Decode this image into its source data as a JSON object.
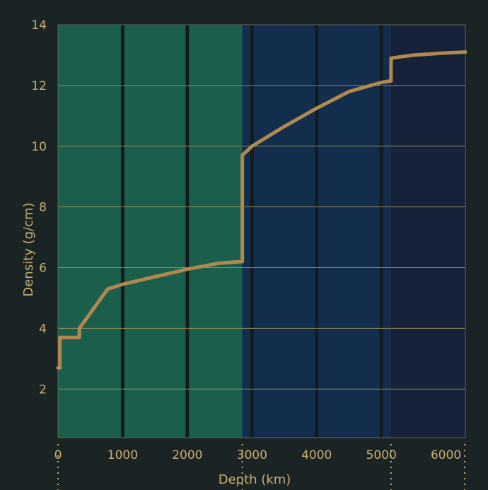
{
  "chart_data": {
    "type": "line",
    "title": "",
    "xlabel": "Depth (km)",
    "ylabel": "Density (g/cm)",
    "xlim": [
      0,
      6300
    ],
    "ylim": [
      0.4,
      14
    ],
    "x_ticks": [
      0,
      1000,
      2000,
      3000,
      4000,
      5000,
      6000
    ],
    "x_tick_labels": [
      "0",
      "1000",
      "2000",
      "3000",
      "4000",
      "5000",
      "6000"
    ],
    "y_ticks": [
      2,
      4,
      6,
      8,
      10,
      12,
      14
    ],
    "y_tick_labels": [
      "2",
      "4",
      "6",
      "8",
      "10",
      "12",
      "14"
    ],
    "grid": "horizontal",
    "regions": [
      {
        "from": 0,
        "to": 2850,
        "color": "#1b5e4c"
      },
      {
        "from": 2850,
        "to": 5150,
        "color": "#132d4d"
      },
      {
        "from": 5150,
        "to": 6300,
        "color": "#16223a"
      }
    ],
    "vertical_lines": [
      1000,
      2000,
      3000,
      4000,
      5000
    ],
    "dotted_markers": [
      0,
      2850,
      5150,
      6300
    ],
    "series": [
      {
        "color": "#b0894f",
        "x": [
          0,
          30,
          30,
          330,
          330,
          770,
          1000,
          1500,
          2000,
          2500,
          2850,
          2850,
          3000,
          3500,
          4000,
          4500,
          5000,
          5150,
          5150,
          5500,
          6000,
          6300
        ],
        "y": [
          2.7,
          2.7,
          3.7,
          3.7,
          4.0,
          5.3,
          5.45,
          5.7,
          5.95,
          6.15,
          6.2,
          9.7,
          10.0,
          10.65,
          11.25,
          11.8,
          12.1,
          12.15,
          12.9,
          13.0,
          13.07,
          13.1
        ]
      }
    ]
  }
}
